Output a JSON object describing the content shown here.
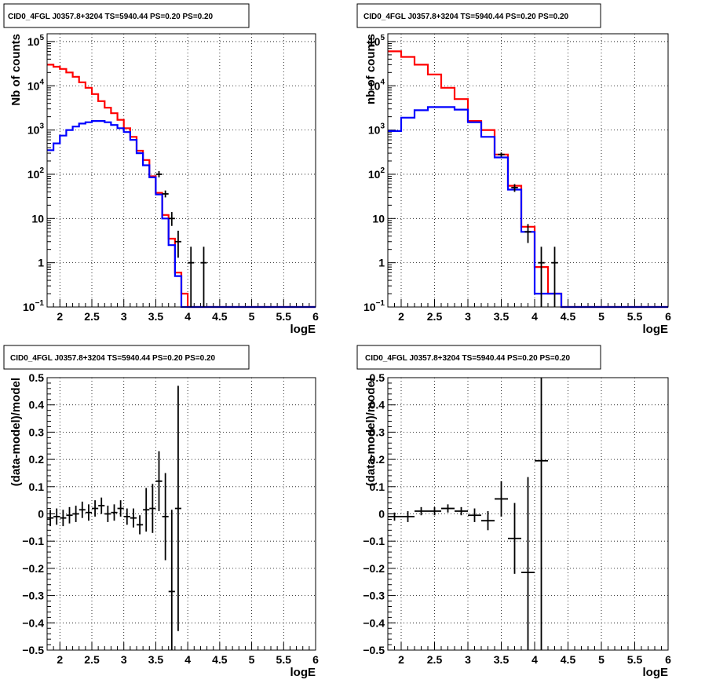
{
  "chart_data": [
    {
      "type": "line",
      "title": "CID0_4FGL J0357.8+3204 TS=5940.44 PS=0.20 PS=0.20",
      "xlabel": "logE",
      "ylabel": "Nb of counts",
      "xlim": [
        1.8,
        6
      ],
      "ylim": [
        0.1,
        150000
      ],
      "yscale": "log",
      "grid": true,
      "xticks": [
        "2",
        "2.5",
        "3",
        "3.5",
        "4",
        "4.5",
        "5",
        "5.5",
        "6"
      ],
      "yticks": [
        {
          "value": 0.1,
          "base": "10",
          "exp": "−1"
        },
        {
          "value": 1,
          "label": "1"
        },
        {
          "value": 10,
          "label": "10"
        },
        {
          "value": 100,
          "base": "10",
          "exp": "2"
        },
        {
          "value": 1000,
          "base": "10",
          "exp": "3"
        },
        {
          "value": 10000,
          "base": "10",
          "exp": "4"
        },
        {
          "value": 100000,
          "base": "10",
          "exp": "5"
        }
      ],
      "bin_edges": [
        1.8,
        1.9,
        2.0,
        2.1,
        2.2,
        2.3,
        2.4,
        2.5,
        2.6,
        2.7,
        2.8,
        2.9,
        3.0,
        3.1,
        3.2,
        3.3,
        3.4,
        3.5,
        3.6,
        3.7,
        3.8,
        3.9,
        4.0,
        4.1,
        4.2,
        4.3,
        4.4,
        4.5,
        4.6,
        4.7,
        4.8,
        4.9,
        5.0,
        5.1,
        5.2,
        5.3,
        5.4,
        5.5,
        5.6,
        5.7,
        5.8,
        5.9,
        6.0
      ],
      "series": [
        {
          "color": "#ff0000",
          "values": [
            30000,
            27000,
            24000,
            20000,
            16000,
            12000,
            9000,
            6500,
            4500,
            3200,
            2400,
            1700,
            1100,
            700,
            340,
            210,
            90,
            38,
            12,
            3.5,
            0.6,
            0.2,
            0.1,
            0.1,
            0.1,
            0.1,
            0.1,
            0.1,
            0.1,
            0.1,
            0.1,
            0.1,
            0.1,
            0.1,
            0.1,
            0.1,
            0.1,
            0.1,
            0.1,
            0.1,
            0.1,
            0.1
          ]
        },
        {
          "color": "#0000ff",
          "values": [
            350,
            500,
            750,
            1000,
            1200,
            1400,
            1500,
            1600,
            1600,
            1500,
            1300,
            1100,
            900,
            600,
            300,
            160,
            85,
            35,
            10,
            2.5,
            0.5,
            0.1,
            0.1,
            0.1,
            0.1,
            0.1,
            0.1,
            0.1,
            0.1,
            0.1,
            0.1,
            0.1,
            0.1,
            0.1,
            0.1,
            0.1,
            0.1,
            0.1,
            0.1,
            0.1,
            0.1,
            0.1
          ]
        }
      ],
      "points": [
        {
          "x": 3.55,
          "y": 100,
          "ylo": 85,
          "yhi": 118
        },
        {
          "x": 3.65,
          "y": 36,
          "ylo": 30,
          "yhi": 43
        },
        {
          "x": 3.75,
          "y": 10,
          "ylo": 6.8,
          "yhi": 14
        },
        {
          "x": 3.85,
          "y": 3,
          "ylo": 1.3,
          "yhi": 5.3
        },
        {
          "x": 4.05,
          "y": 1,
          "ylo": 0.1,
          "yhi": 2.3
        },
        {
          "x": 4.25,
          "y": 1,
          "ylo": 0.1,
          "yhi": 2.3
        }
      ]
    },
    {
      "type": "line",
      "title": "CID0_4FGL J0357.8+3204 TS=5940.44 PS=0.20 PS=0.20",
      "xlabel": "logE",
      "ylabel": "nb of counts",
      "xlim": [
        1.8,
        6
      ],
      "ylim": [
        0.1,
        150000
      ],
      "yscale": "log",
      "grid": true,
      "xticks": [
        "2",
        "2.5",
        "3",
        "3.5",
        "4",
        "4.5",
        "5",
        "5.5",
        "6"
      ],
      "yticks": [
        {
          "value": 0.1,
          "base": "10",
          "exp": "−1"
        },
        {
          "value": 1,
          "label": "1"
        },
        {
          "value": 10,
          "label": "10"
        },
        {
          "value": 100,
          "base": "10",
          "exp": "2"
        },
        {
          "value": 1000,
          "base": "10",
          "exp": "3"
        },
        {
          "value": 10000,
          "base": "10",
          "exp": "4"
        },
        {
          "value": 100000,
          "base": "10",
          "exp": "5"
        }
      ],
      "bin_edges": [
        1.8,
        2.0,
        2.2,
        2.4,
        2.6,
        2.8,
        3.0,
        3.2,
        3.4,
        3.6,
        3.8,
        4.0,
        4.2,
        4.4,
        4.6,
        4.8,
        5.0,
        5.2,
        5.4,
        5.6,
        5.8,
        6.0
      ],
      "series": [
        {
          "color": "#ff0000",
          "values": [
            60000,
            45000,
            30000,
            18000,
            9000,
            5000,
            1600,
            1000,
            280,
            55,
            6.5,
            0.8,
            0.2,
            0.1,
            0.1,
            0.1,
            0.1,
            0.1,
            0.1,
            0.1,
            0.1
          ]
        },
        {
          "color": "#0000ff",
          "values": [
            950,
            1900,
            2800,
            3300,
            3300,
            2900,
            1500,
            700,
            240,
            45,
            5,
            0.2,
            0.2,
            0.1,
            0.1,
            0.1,
            0.1,
            0.1,
            0.1,
            0.1,
            0.1
          ]
        }
      ],
      "points": [
        {
          "x": 3.5,
          "y": 280,
          "ylo": 250,
          "yhi": 310
        },
        {
          "x": 3.7,
          "y": 50,
          "ylo": 40,
          "yhi": 60
        },
        {
          "x": 3.9,
          "y": 5,
          "ylo": 2.8,
          "yhi": 7.5
        },
        {
          "x": 4.1,
          "y": 1,
          "ylo": 0.1,
          "yhi": 2.3
        },
        {
          "x": 4.3,
          "y": 1,
          "ylo": 0.1,
          "yhi": 2.3
        }
      ]
    },
    {
      "type": "scatter",
      "title": "CID0_4FGL J0357.8+3204 TS=5940.44 PS=0.20 PS=0.20",
      "xlabel": "logE",
      "ylabel": "(data-model)/model",
      "xlim": [
        1.8,
        6
      ],
      "ylim": [
        -0.5,
        0.5
      ],
      "yscale": "linear",
      "grid": true,
      "xticks": [
        "2",
        "2.5",
        "3",
        "3.5",
        "4",
        "4.5",
        "5",
        "5.5",
        "6"
      ],
      "yticks": [
        {
          "value": -0.5,
          "label": "−0.5"
        },
        {
          "value": -0.4,
          "label": "−0.4"
        },
        {
          "value": -0.3,
          "label": "−0.3"
        },
        {
          "value": -0.2,
          "label": "−0.2"
        },
        {
          "value": -0.1,
          "label": "−0.1"
        },
        {
          "value": 0,
          "label": "0"
        },
        {
          "value": 0.1,
          "label": "0.1"
        },
        {
          "value": 0.2,
          "label": "0.2"
        },
        {
          "value": 0.3,
          "label": "0.3"
        },
        {
          "value": 0.4,
          "label": "0.4"
        },
        {
          "value": 0.5,
          "label": "0.5"
        }
      ],
      "points": [
        {
          "x": 1.85,
          "y": -0.015,
          "err": 0.03,
          "xerr": 0.05
        },
        {
          "x": 1.95,
          "y": -0.01,
          "err": 0.03,
          "xerr": 0.05
        },
        {
          "x": 2.05,
          "y": -0.015,
          "err": 0.03,
          "xerr": 0.05
        },
        {
          "x": 2.15,
          "y": -0.005,
          "err": 0.03,
          "xerr": 0.05
        },
        {
          "x": 2.25,
          "y": 0.0,
          "err": 0.03,
          "xerr": 0.05
        },
        {
          "x": 2.35,
          "y": 0.015,
          "err": 0.03,
          "xerr": 0.05
        },
        {
          "x": 2.45,
          "y": 0.005,
          "err": 0.03,
          "xerr": 0.05
        },
        {
          "x": 2.55,
          "y": 0.02,
          "err": 0.03,
          "xerr": 0.05
        },
        {
          "x": 2.65,
          "y": 0.03,
          "err": 0.03,
          "xerr": 0.05
        },
        {
          "x": 2.75,
          "y": 0.0,
          "err": 0.03,
          "xerr": 0.05
        },
        {
          "x": 2.85,
          "y": 0.005,
          "err": 0.03,
          "xerr": 0.05
        },
        {
          "x": 2.95,
          "y": 0.02,
          "err": 0.03,
          "xerr": 0.05
        },
        {
          "x": 3.05,
          "y": -0.01,
          "err": 0.03,
          "xerr": 0.05
        },
        {
          "x": 3.15,
          "y": -0.015,
          "err": 0.035,
          "xerr": 0.05
        },
        {
          "x": 3.25,
          "y": -0.04,
          "err": 0.035,
          "xerr": 0.05
        },
        {
          "x": 3.35,
          "y": 0.015,
          "err": 0.08,
          "xerr": 0.05
        },
        {
          "x": 3.45,
          "y": 0.02,
          "err": 0.09,
          "xerr": 0.05
        },
        {
          "x": 3.55,
          "y": 0.12,
          "err": 0.11,
          "xerr": 0.05
        },
        {
          "x": 3.65,
          "y": -0.01,
          "err": 0.16,
          "xerr": 0.05
        },
        {
          "x": 3.75,
          "y": -0.285,
          "err": 0.3,
          "xerr": 0.05
        },
        {
          "x": 3.85,
          "y": 0.02,
          "err": 0.45,
          "xerr": 0.05
        }
      ]
    },
    {
      "type": "scatter",
      "title": "CID0_4FGL J0357.8+3204 TS=5940.44 PS=0.20 PS=0.20",
      "xlabel": "logE",
      "ylabel": "(data-model)/model",
      "xlim": [
        1.8,
        6
      ],
      "ylim": [
        -0.5,
        0.5
      ],
      "yscale": "linear",
      "grid": true,
      "xticks": [
        "2",
        "2.5",
        "3",
        "3.5",
        "4",
        "4.5",
        "5",
        "5.5",
        "6"
      ],
      "yticks": [
        {
          "value": -0.5,
          "label": "−0.5"
        },
        {
          "value": -0.4,
          "label": "−0.4"
        },
        {
          "value": -0.3,
          "label": "−0.3"
        },
        {
          "value": -0.2,
          "label": "−0.2"
        },
        {
          "value": -0.1,
          "label": "−0.1"
        },
        {
          "value": 0,
          "label": "0"
        },
        {
          "value": 0.1,
          "label": "0.1"
        },
        {
          "value": 0.2,
          "label": "0.2"
        },
        {
          "value": 0.3,
          "label": "0.3"
        },
        {
          "value": 0.4,
          "label": "0.4"
        },
        {
          "value": 0.5,
          "label": "0.5"
        }
      ],
      "points": [
        {
          "x": 1.9,
          "y": -0.01,
          "err": 0.015,
          "xerr": 0.1
        },
        {
          "x": 2.1,
          "y": -0.01,
          "err": 0.02,
          "xerr": 0.1
        },
        {
          "x": 2.3,
          "y": 0.01,
          "err": 0.015,
          "xerr": 0.1
        },
        {
          "x": 2.5,
          "y": 0.01,
          "err": 0.015,
          "xerr": 0.1
        },
        {
          "x": 2.7,
          "y": 0.02,
          "err": 0.015,
          "xerr": 0.1
        },
        {
          "x": 2.9,
          "y": 0.01,
          "err": 0.015,
          "xerr": 0.1
        },
        {
          "x": 3.1,
          "y": -0.005,
          "err": 0.025,
          "xerr": 0.1
        },
        {
          "x": 3.3,
          "y": -0.025,
          "err": 0.035,
          "xerr": 0.1
        },
        {
          "x": 3.5,
          "y": 0.055,
          "err": 0.065,
          "xerr": 0.1
        },
        {
          "x": 3.7,
          "y": -0.09,
          "err": 0.13,
          "xerr": 0.1
        },
        {
          "x": 3.9,
          "y": -0.215,
          "err": 0.35,
          "xerr": 0.1
        },
        {
          "x": 4.1,
          "y": 0.195,
          "err": 0.8,
          "xerr": 0.1
        }
      ]
    }
  ]
}
